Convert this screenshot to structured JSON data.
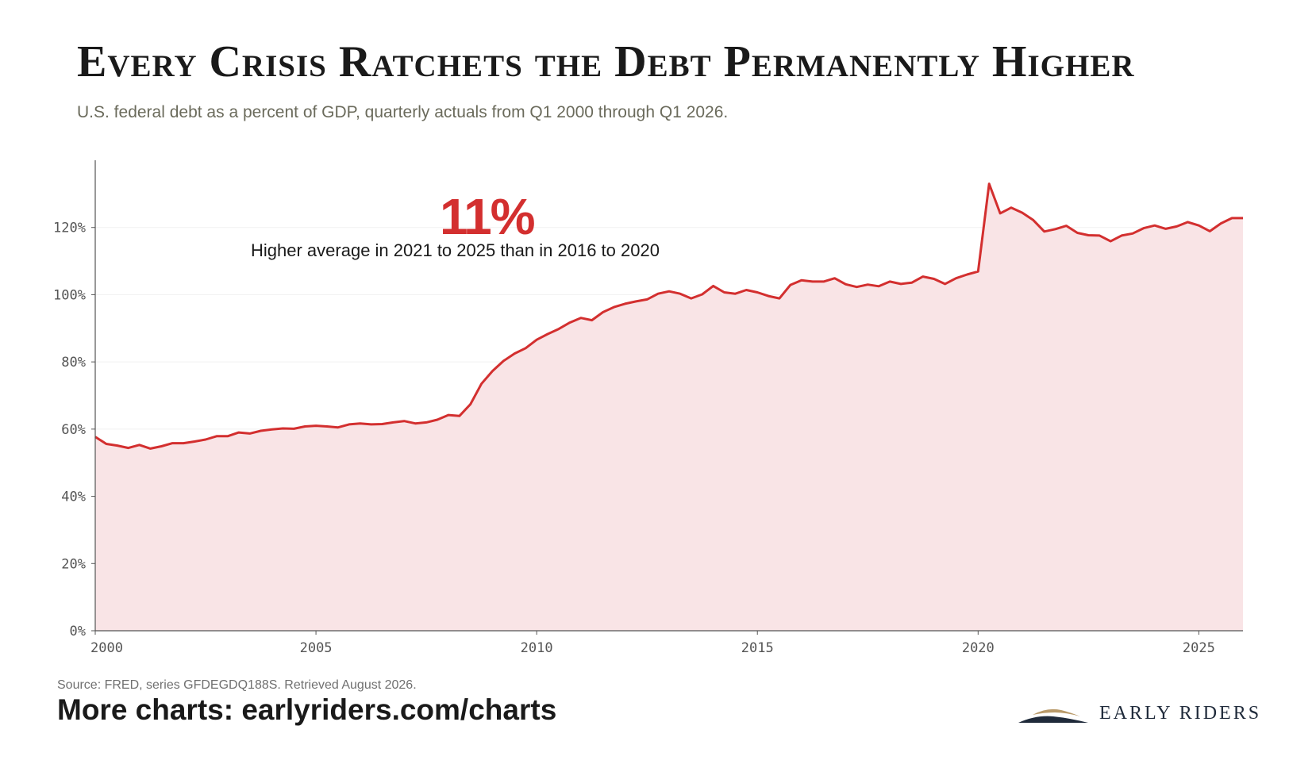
{
  "title": "Every Crisis Ratchets the Debt Permanently Higher",
  "subtitle": "U.S. federal debt as a percent of GDP, quarterly actuals from Q1 2000 through Q1 2026.",
  "annotation": {
    "value": "11%",
    "text": "Higher average in 2021 to 2025 than in 2016 to 2020"
  },
  "footer": {
    "source": "Source: FRED, series GFDEGDQ188S. Retrieved August 2026.",
    "more": "More charts: earlyriders.com/charts",
    "logo_text": "EARLY RIDERS"
  },
  "colors": {
    "line": "#d32f2f",
    "fill": "#f9e4e6",
    "axis": "#555555",
    "grid": "#f1f1f1",
    "tick_text": "#555555",
    "logo_dark": "#1f2a3a",
    "logo_gold": "#b99a6a"
  },
  "chart_data": {
    "type": "area",
    "xlabel": "",
    "ylabel": "",
    "xlim": [
      2000,
      2026
    ],
    "ylim": [
      0,
      140
    ],
    "x_ticks": [
      2000,
      2005,
      2010,
      2015,
      2020,
      2025
    ],
    "x_tick_labels": [
      "2000",
      "2005",
      "2010",
      "2015",
      "2020",
      "2025"
    ],
    "y_ticks": [
      0,
      20,
      40,
      60,
      80,
      100,
      120
    ],
    "y_tick_labels": [
      "0%",
      "20%",
      "40%",
      "60%",
      "80%",
      "100%",
      "120%"
    ],
    "grid": "horizontal",
    "legend": "none",
    "series": [
      {
        "x_start": "2000-Q1",
        "frequency": "quarterly",
        "values": [
          57.7,
          55.6,
          55.1,
          54.4,
          55.3,
          54.2,
          54.9,
          55.8,
          55.8,
          56.3,
          56.9,
          57.9,
          57.9,
          59.0,
          58.7,
          59.5,
          59.9,
          60.2,
          60.1,
          60.8,
          61.0,
          60.8,
          60.5,
          61.4,
          61.7,
          61.4,
          61.5,
          62.0,
          62.4,
          61.7,
          62.0,
          62.8,
          64.2,
          63.9,
          67.4,
          73.5,
          77.3,
          80.3,
          82.5,
          84.1,
          86.6,
          88.3,
          89.8,
          91.7,
          93.1,
          92.4,
          94.8,
          96.3,
          97.3,
          98.0,
          98.6,
          100.3,
          101.0,
          100.3,
          98.9,
          100.1,
          102.6,
          100.7,
          100.3,
          101.4,
          100.7,
          99.6,
          98.9,
          102.9,
          104.3,
          103.9,
          103.9,
          104.9,
          103.1,
          102.3,
          103.0,
          102.5,
          103.9,
          103.2,
          103.6,
          105.4,
          104.7,
          103.2,
          104.9,
          106.0,
          106.9,
          133.0,
          124.2,
          125.9,
          124.4,
          122.2,
          118.8,
          119.5,
          120.5,
          118.4,
          117.7,
          117.6,
          115.9,
          117.6,
          118.2,
          119.8,
          120.6,
          119.6,
          120.3,
          121.6,
          120.6,
          118.9,
          121.2,
          122.8,
          122.8
        ]
      }
    ]
  }
}
